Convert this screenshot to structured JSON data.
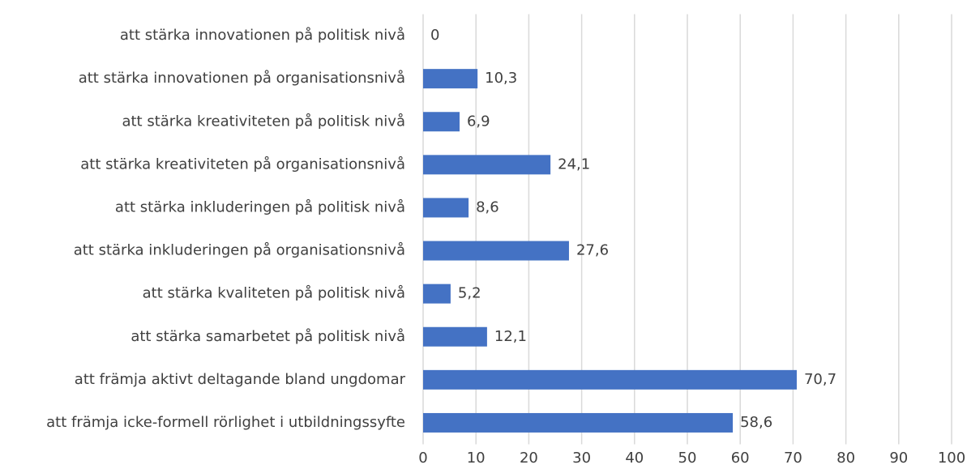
{
  "chart_data": {
    "type": "barh",
    "categories": [
      "att stärka innovationen på politisk nivå",
      "att stärka innovationen på organisationsnivå",
      "att stärka kreativiteten på politisk nivå",
      "att stärka kreativiteten på organisationsnivå",
      "att stärka inkluderingen på politisk nivå",
      "att stärka inkluderingen på organisationsnivå",
      "att stärka kvaliteten på politisk nivå",
      "att stärka samarbetet på politisk nivå",
      "att främja aktivt deltagande bland ungdomar",
      "att främja icke-formell rörlighet i utbildningssyfte"
    ],
    "values": [
      0,
      10.3,
      6.9,
      24.1,
      8.6,
      27.6,
      5.2,
      12.1,
      70.7,
      58.6
    ],
    "value_labels": [
      "0",
      "10,3",
      "6,9",
      "24,1",
      "8,6",
      "27,6",
      "5,2",
      "12,1",
      "70,7",
      "58,6"
    ],
    "color": "#4472c4",
    "xlim": [
      0,
      100
    ],
    "xticks": [
      0,
      10,
      20,
      30,
      40,
      50,
      60,
      70,
      80,
      90,
      100
    ],
    "grid": true
  }
}
